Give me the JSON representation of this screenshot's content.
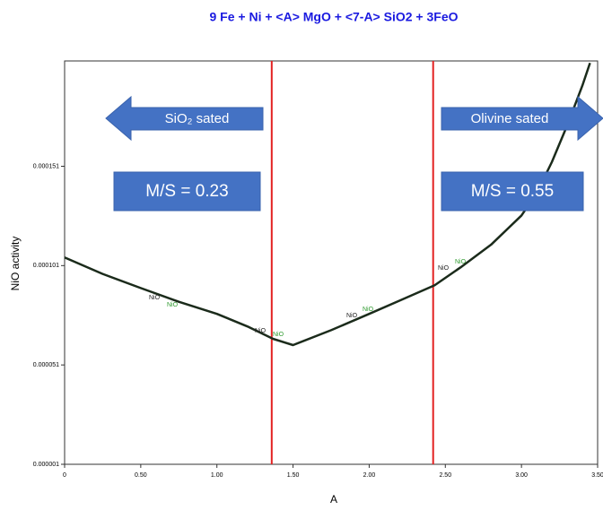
{
  "chart_data": {
    "type": "line",
    "title": "9 Fe  +  Ni  +  <A> MgO  +  <7-A> SiO2  + 3FeO",
    "xlabel": "A",
    "ylabel": "NiO activity",
    "x": [
      0,
      0.25,
      0.5,
      0.75,
      1.0,
      1.2,
      1.37,
      1.5,
      1.75,
      2.0,
      2.2,
      2.43,
      2.6,
      2.8,
      3.0,
      3.1,
      3.2,
      3.3,
      3.4,
      3.45
    ],
    "series": [
      {
        "name": "NiO activity",
        "color": "#1b2b1b",
        "values": [
          0.0001051,
          9.68e-05,
          8.97e-05,
          8.28e-05,
          7.67e-05,
          7.04e-05,
          6.41e-05,
          6.1e-05,
          6.85e-05,
          7.67e-05,
          8.34e-05,
          9.11e-05,
          0.0001001,
          0.0001115,
          0.0001262,
          0.0001375,
          0.0001532,
          0.0001715,
          0.0001916,
          0.000203
        ]
      }
    ],
    "xlim": [
      0,
      3.5
    ],
    "xticks": [
      0,
      {
        "value": 0.5,
        "label": "0.50"
      },
      {
        "value": 1,
        "label": "1.00"
      },
      {
        "value": 1.5,
        "label": "1.50"
      },
      {
        "value": 2,
        "label": "2.00"
      },
      {
        "value": 2.5,
        "label": "2.50"
      },
      {
        "value": 3,
        "label": "3.00"
      },
      {
        "value": 3.5,
        "label": "3.50"
      }
    ],
    "ylim": [
      1e-06,
      0.000204
    ],
    "yticks": [
      1e-06,
      5.1e-05,
      0.000101,
      0.000151
    ],
    "vlines": [
      {
        "x": 1.36,
        "color": "#e32222"
      },
      {
        "x": 2.42,
        "color": "#e32222"
      }
    ],
    "arrows": [
      {
        "text": "SiO₂ sated",
        "direction": "left"
      },
      {
        "text": "Olivine sated",
        "direction": "right"
      }
    ],
    "boxes": [
      "M/S = 0.23",
      "M/S = 0.55"
    ],
    "point_labels": [
      {
        "text": "NiO",
        "color": "#222222"
      },
      {
        "text": "NiO",
        "color": "#2e9a2e"
      },
      {
        "text": "NiO",
        "color": "#222222"
      },
      {
        "text": "NiO",
        "color": "#2e9a2e"
      },
      {
        "text": "NiO",
        "color": "#222222"
      },
      {
        "text": "NiO",
        "color": "#2e9a2e"
      },
      {
        "text": "NiO",
        "color": "#222222"
      },
      {
        "text": "NiO",
        "color": "#2e9a2e"
      }
    ],
    "accent": "#4472c4"
  }
}
